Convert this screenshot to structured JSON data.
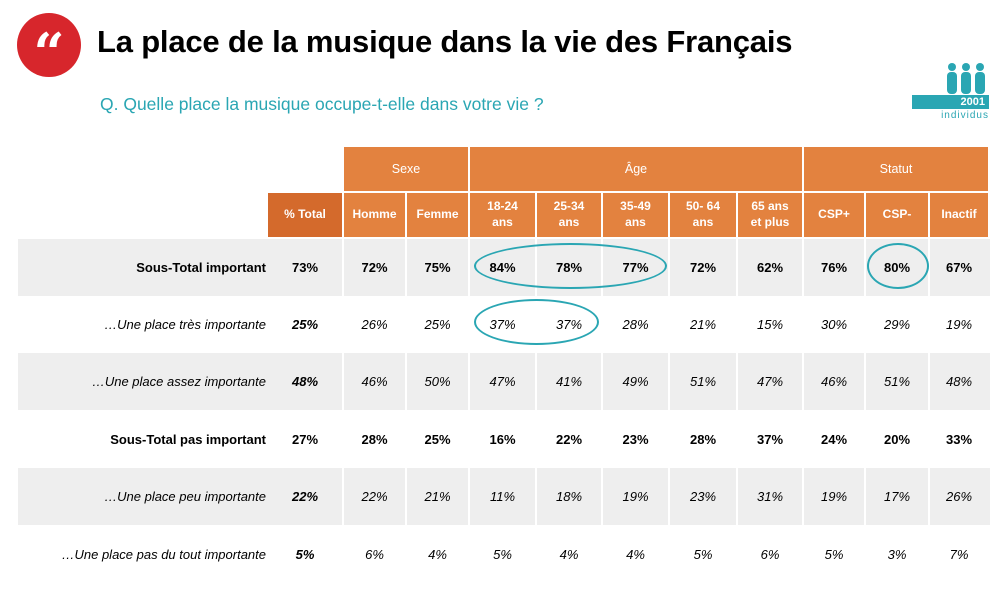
{
  "header": {
    "quote_glyph": "“",
    "title": "La place de la musique dans la vie des Français",
    "question": "Q. Quelle place la musique occupe-t-elle dans votre vie ?"
  },
  "sample_badge": {
    "count": "2001",
    "unit": "individus"
  },
  "table": {
    "groups": [
      "Sexe",
      "Âge",
      "Statut"
    ],
    "columns": [
      "% Total",
      "Homme",
      "Femme",
      "18-24\nans",
      "25-34\nans",
      "35-49\nans",
      "50- 64\nans",
      "65 ans\net plus",
      "CSP+",
      "CSP-",
      "Inactif"
    ],
    "rows": [
      {
        "label": "Sous-Total important",
        "values": [
          "73%",
          "72%",
          "75%",
          "84%",
          "78%",
          "77%",
          "72%",
          "62%",
          "76%",
          "80%",
          "67%"
        ]
      },
      {
        "label": "…Une place très importante",
        "values": [
          "25%",
          "26%",
          "25%",
          "37%",
          "37%",
          "28%",
          "21%",
          "15%",
          "30%",
          "29%",
          "19%"
        ]
      },
      {
        "label": "…Une place assez importante",
        "values": [
          "48%",
          "46%",
          "50%",
          "47%",
          "41%",
          "49%",
          "51%",
          "47%",
          "46%",
          "51%",
          "48%"
        ]
      },
      {
        "label": "Sous-Total pas important",
        "values": [
          "27%",
          "28%",
          "25%",
          "16%",
          "22%",
          "23%",
          "28%",
          "37%",
          "24%",
          "20%",
          "33%"
        ]
      },
      {
        "label": "…Une place peu importante",
        "values": [
          "22%",
          "22%",
          "21%",
          "11%",
          "18%",
          "19%",
          "23%",
          "31%",
          "19%",
          "17%",
          "26%"
        ]
      },
      {
        "label": "…Une place pas du tout importante",
        "values": [
          "5%",
          "6%",
          "4%",
          "5%",
          "4%",
          "4%",
          "5%",
          "6%",
          "5%",
          "3%",
          "7%"
        ]
      }
    ]
  },
  "colors": {
    "accent_orange": "#e3823f",
    "total_orange": "#d46a2c",
    "teal": "#2aa6b3",
    "logo_red": "#d7262c"
  }
}
